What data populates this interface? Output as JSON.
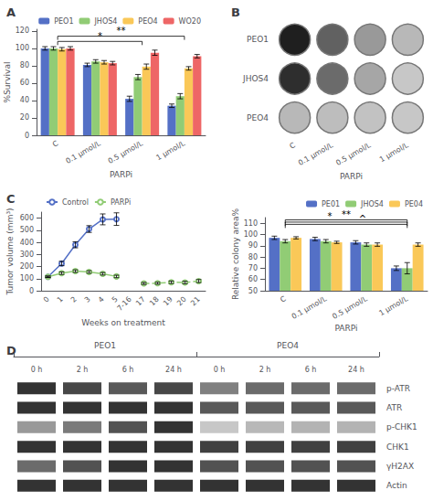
{
  "chart_data": [
    {
      "type": "bar",
      "title": "A",
      "categories": [
        "C",
        "0.1 μmol/L",
        "0.5 μmol/L",
        "1 μmol/L"
      ],
      "series": [
        {
          "name": "PEO1",
          "values": [
            100,
            81,
            42,
            34
          ],
          "errors": [
            2,
            2,
            3,
            2
          ]
        },
        {
          "name": "JHOS4",
          "values": [
            100,
            85,
            67,
            45
          ],
          "errors": [
            2,
            2,
            3,
            3
          ]
        },
        {
          "name": "PEO4",
          "values": [
            99,
            84,
            79,
            77
          ],
          "errors": [
            2,
            2,
            3,
            2
          ]
        },
        {
          "name": "WO20",
          "values": [
            100,
            83,
            95,
            91
          ],
          "errors": [
            2,
            2,
            3,
            2
          ]
        }
      ],
      "ylabel": "%Survival",
      "xlabel": "PARPi",
      "ylim": [
        0,
        122
      ],
      "yticks": [
        0,
        20,
        40,
        60,
        80,
        100,
        120
      ],
      "grid": false,
      "legend": "upper right",
      "annotations": [
        {
          "text": "*",
          "from": "C",
          "to": "0.5 μmol/L",
          "y": 108
        },
        {
          "text": "**",
          "from": "C",
          "to": "1 μmol/L",
          "y": 114
        }
      ]
    },
    {
      "type": "heatmap",
      "title": "B",
      "rows": [
        "PEO1",
        "JHOS4",
        "PEO4"
      ],
      "categories": [
        "C",
        "0.1 μmol/L",
        "0.5 μmol/L",
        "1 μmol/L"
      ],
      "cells": [
        [
          0.12,
          0.38,
          0.6,
          0.72
        ],
        [
          0.18,
          0.42,
          0.65,
          0.78
        ],
        [
          0.72,
          0.74,
          0.76,
          0.78
        ]
      ],
      "xlabel": "PARPi"
    },
    {
      "type": "line",
      "title": "C",
      "categories": [
        "0",
        "1",
        "2",
        "3",
        "4",
        "5",
        "7-16",
        "17",
        "18",
        "19",
        "20",
        "21"
      ],
      "series": [
        {
          "name": "Control",
          "values": [
            115,
            225,
            380,
            510,
            590,
            592,
            null,
            null,
            null,
            null,
            null,
            null
          ],
          "errors": [
            6,
            18,
            25,
            28,
            45,
            52,
            null,
            null,
            null,
            null,
            null,
            null
          ]
        },
        {
          "name": "PARPi",
          "values": [
            115,
            145,
            162,
            155,
            140,
            118,
            null,
            null,
            null,
            null,
            null,
            null
          ],
          "errors": [
            6,
            10,
            10,
            10,
            10,
            10,
            null,
            null,
            null,
            null,
            null,
            null
          ]
        },
        {
          "name": "PARPi",
          "line_style": "dashed",
          "values": [
            null,
            null,
            null,
            null,
            null,
            null,
            null,
            60,
            62,
            70,
            68,
            80
          ],
          "errors": [
            null,
            null,
            null,
            null,
            null,
            null,
            null,
            8,
            8,
            10,
            10,
            12
          ]
        }
      ],
      "ylabel": "Tumor volume (mm³)",
      "xlabel": "Weeks on treatment",
      "ylim": [
        0,
        650
      ],
      "yticks": [
        0,
        100,
        200,
        300,
        400,
        500,
        600
      ],
      "grid": false,
      "legend": "upper left"
    },
    {
      "type": "bar",
      "categories": [
        "C",
        "0.1 μmol/L",
        "0.5 μmol/L",
        "1 μmol/L"
      ],
      "series": [
        {
          "name": "PE01",
          "values": [
            97,
            96,
            93,
            70
          ],
          "errors": [
            1.5,
            1.5,
            1.5,
            2
          ]
        },
        {
          "name": "JHOS4",
          "values": [
            94,
            94,
            91,
            70
          ],
          "errors": [
            1.5,
            1.5,
            1.5,
            5
          ]
        },
        {
          "name": "PE04",
          "values": [
            97,
            93,
            91,
            91
          ],
          "errors": [
            1,
            1,
            1.5,
            1.5
          ]
        }
      ],
      "ylabel": "Relative colony area%",
      "xlabel": "PARPi",
      "ylim": [
        50,
        115
      ],
      "yticks": [
        50,
        60,
        70,
        80,
        90,
        100,
        110
      ],
      "grid": false,
      "legend": "upper right",
      "annotations": [
        {
          "text": "*",
          "from": "C",
          "to": "1 μmol/L",
          "y": 111
        },
        {
          "text": "**",
          "from": "C",
          "to": "1 μmol/L",
          "y": 113
        },
        {
          "text": "^",
          "from": "C",
          "to": "1 μmol/L",
          "y": 109
        }
      ]
    },
    {
      "type": "heatmap",
      "title": "D",
      "groups": [
        "PEO1",
        "PEO4"
      ],
      "categories": [
        "0 h",
        "2 h",
        "6 h",
        "24 h"
      ],
      "rows": [
        "p-ATR",
        "ATR",
        "p-CHK1",
        "CHK1",
        "γH2AX",
        "Actin"
      ],
      "cells": [
        [
          0.2,
          0.28,
          0.35,
          0.28,
          0.5,
          0.42,
          0.42,
          0.42
        ],
        [
          0.2,
          0.2,
          0.2,
          0.2,
          0.35,
          0.35,
          0.35,
          0.35
        ],
        [
          0.6,
          0.48,
          0.32,
          0.2,
          0.78,
          0.72,
          0.7,
          0.7
        ],
        [
          0.2,
          0.2,
          0.2,
          0.2,
          0.25,
          0.25,
          0.25,
          0.25
        ],
        [
          0.42,
          0.32,
          0.2,
          0.2,
          0.32,
          0.32,
          0.32,
          0.32
        ],
        [
          0.2,
          0.2,
          0.2,
          0.2,
          0.2,
          0.2,
          0.2,
          0.2
        ]
      ]
    }
  ]
}
